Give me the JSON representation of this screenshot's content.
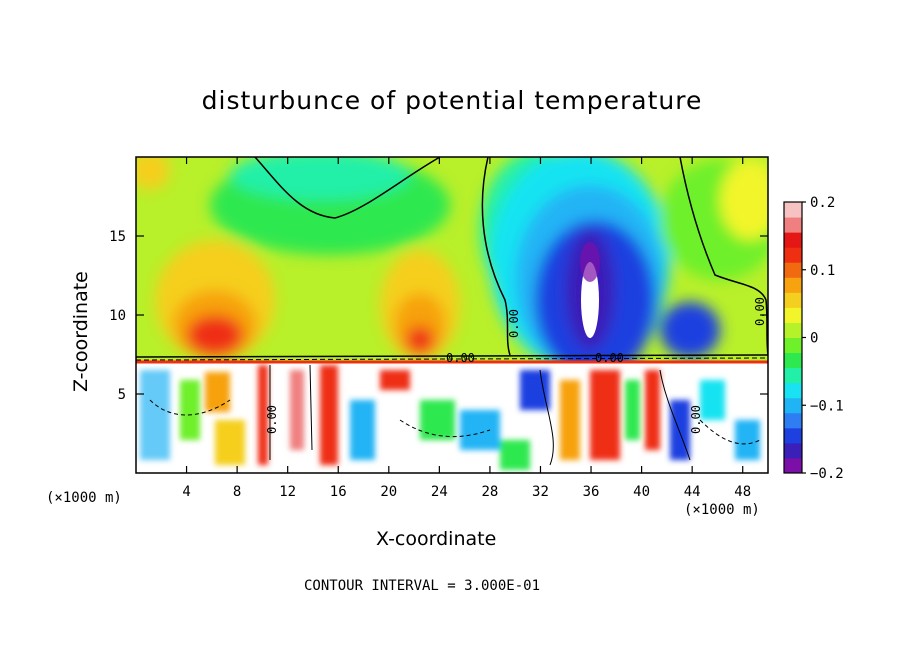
{
  "chart_data": {
    "type": "heatmap",
    "title": "disturbunce of potential temperature",
    "xlabel": "X-coordinate",
    "ylabel": "Z-coordinate",
    "x_unit_label_left": "(×1000 m)",
    "x_unit_label_right": "(×1000 m)",
    "x_ticks": [
      "4",
      "8",
      "12",
      "16",
      "20",
      "24",
      "28",
      "32",
      "36",
      "40",
      "44",
      "48"
    ],
    "y_ticks": [
      "5",
      "10",
      "15"
    ],
    "xlim": [
      0,
      50
    ],
    "ylim": [
      0,
      20
    ],
    "colorbar": {
      "ticks": [
        "0.2",
        "0.1",
        "0",
        "−0.1",
        "−0.2"
      ],
      "range": [
        -0.2,
        0.2
      ],
      "colors": [
        "#7b0fa8",
        "#3a1fb8",
        "#1e40e0",
        "#2f7df2",
        "#21b4f5",
        "#19e3f2",
        "#22f0a8",
        "#2de84f",
        "#6ef02a",
        "#b6f22a",
        "#f2f52a",
        "#f5cf1f",
        "#f7a20f",
        "#f26a10",
        "#ef2f12",
        "#e41616",
        "#f08080",
        "#f6c2c2"
      ]
    },
    "contour_labels": [
      "0.00",
      "0.00",
      "0.00",
      "0.00",
      "0.00",
      "0.00"
    ],
    "contour_interval_text": "CONTOUR INTERVAL = 3.000E-01"
  }
}
